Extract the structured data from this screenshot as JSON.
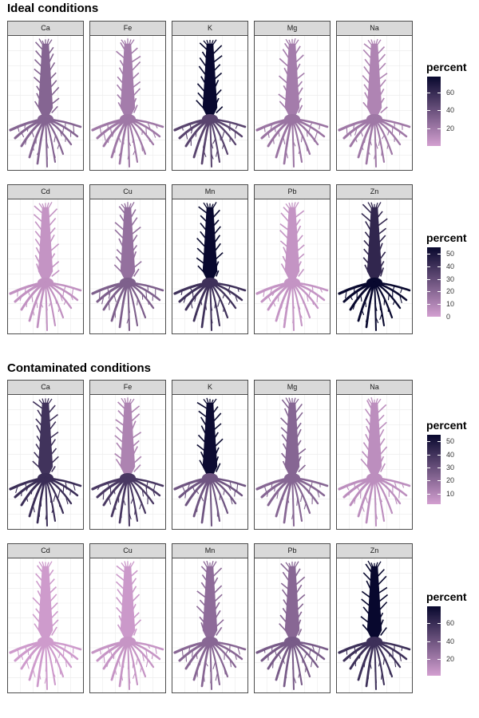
{
  "titles": {
    "ideal": "Ideal conditions",
    "contaminated": "Contaminated conditions"
  },
  "colors": {
    "low": "#d39fd0",
    "high": "#08082e"
  },
  "chart_data": [
    {
      "type": "heatmap",
      "section": "Ideal conditions",
      "panels": [
        {
          "label": "Ca",
          "shoot": 30,
          "root": 30
        },
        {
          "label": "Fe",
          "shoot": 18,
          "root": 20
        },
        {
          "label": "K",
          "shoot": 78,
          "root": 47
        },
        {
          "label": "Mg",
          "shoot": 18,
          "root": 22
        },
        {
          "label": "Na",
          "shoot": 14,
          "root": 20
        }
      ],
      "legend": {
        "title": "percent",
        "min": 0,
        "max": 78,
        "ticks": [
          20,
          40,
          60
        ]
      }
    },
    {
      "type": "heatmap",
      "section": "Ideal conditions",
      "panels": [
        {
          "label": "Cd",
          "shoot": 4,
          "root": 5
        },
        {
          "label": "Cu",
          "shoot": 17,
          "root": 23
        },
        {
          "label": "Mn",
          "shoot": 55,
          "root": 40
        },
        {
          "label": "Pb",
          "shoot": 4,
          "root": 4
        },
        {
          "label": "Zn",
          "shoot": 44,
          "root": 55
        }
      ],
      "legend": {
        "title": "percent",
        "min": 0,
        "max": 55,
        "ticks": [
          0,
          10,
          20,
          30,
          40,
          50
        ]
      }
    },
    {
      "type": "heatmap",
      "section": "Contaminated conditions",
      "panels": [
        {
          "label": "Ca",
          "shoot": 40,
          "root": 42
        },
        {
          "label": "Fe",
          "shoot": 12,
          "root": 38
        },
        {
          "label": "K",
          "shoot": 54,
          "root": 28
        },
        {
          "label": "Mg",
          "shoot": 22,
          "root": 22
        },
        {
          "label": "Na",
          "shoot": 8,
          "root": 8
        }
      ],
      "legend": {
        "title": "percent",
        "min": 2,
        "max": 55,
        "ticks": [
          10,
          20,
          30,
          40,
          50
        ]
      }
    },
    {
      "type": "heatmap",
      "section": "Contaminated conditions",
      "panels": [
        {
          "label": "Cd",
          "shoot": 4,
          "root": 4
        },
        {
          "label": "Cu",
          "shoot": 5,
          "root": 7
        },
        {
          "label": "Mn",
          "shoot": 28,
          "root": 30
        },
        {
          "label": "Pb",
          "shoot": 30,
          "root": 36
        },
        {
          "label": "Zn",
          "shoot": 78,
          "root": 58
        }
      ],
      "legend": {
        "title": "percent",
        "min": 2,
        "max": 78,
        "ticks": [
          20,
          40,
          60
        ]
      }
    }
  ]
}
